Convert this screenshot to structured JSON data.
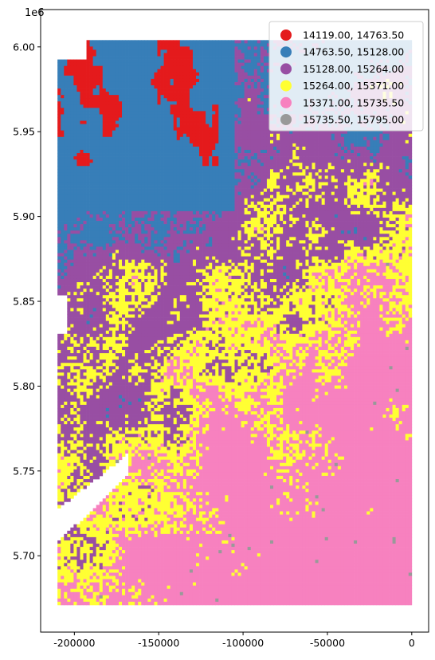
{
  "chart_data": {
    "type": "choropleth-raster",
    "x_ticks": [
      "-200000",
      "-150000",
      "-100000",
      "-50000",
      "0"
    ],
    "y_ticks": [
      "5.70",
      "5.75",
      "5.80",
      "5.85",
      "5.90",
      "5.95",
      "6.00"
    ],
    "y_offset_label": "1e6",
    "xlim": [
      -220000,
      10000
    ],
    "ylim": [
      5655000,
      6022000
    ],
    "x_tick_values": [
      -200000,
      -150000,
      -100000,
      -50000,
      0
    ],
    "y_tick_values": [
      5700000,
      5750000,
      5800000,
      5850000,
      5900000,
      5950000,
      6000000
    ],
    "data_extent": {
      "xmin": -210000,
      "xmax": 0,
      "ymin": 5671000,
      "ymax": 6004000
    },
    "legend_position": "upper-right",
    "classes": [
      {
        "label": "14119.00, 14763.50",
        "color": "#e41a1c"
      },
      {
        "label": "14763.50, 15128.00",
        "color": "#377eb8"
      },
      {
        "label": "15128.00, 15264.00",
        "color": "#984ea3"
      },
      {
        "label": "15264.00, 15371.00",
        "color": "#ffff33"
      },
      {
        "label": "15371.00, 15735.50",
        "color": "#f781bf"
      },
      {
        "label": "15735.50, 15795.00",
        "color": "#999999"
      }
    ]
  }
}
